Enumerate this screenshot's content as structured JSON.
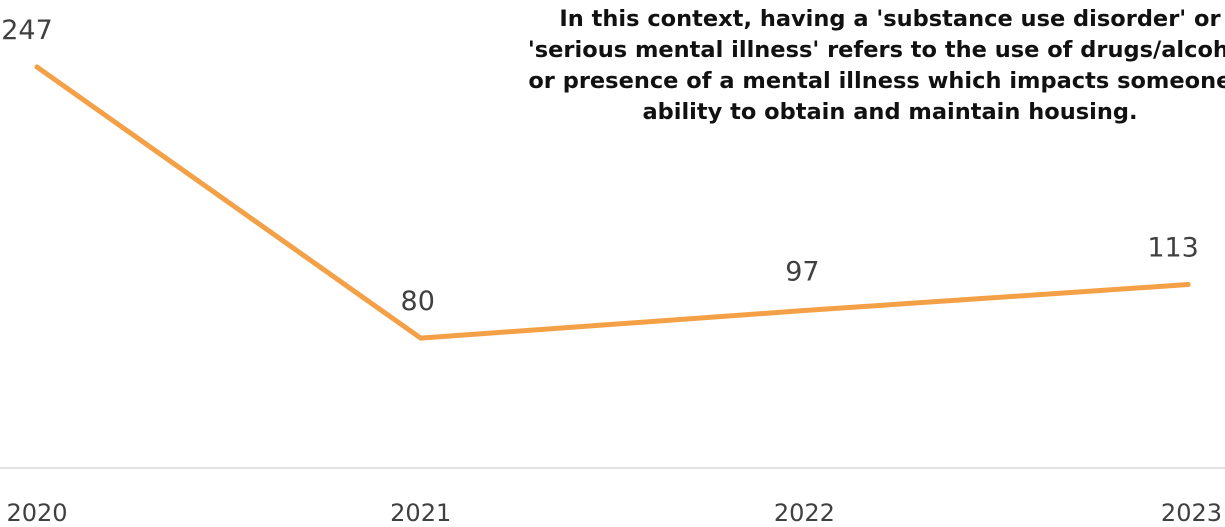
{
  "annotation": {
    "lines": [
      "In this context, having a 'substance use disorder' or",
      "'serious mental illness' refers to the use of drugs/alcohol",
      "or presence of a mental illness which impacts someone's",
      "ability to obtain and maintain housing."
    ]
  },
  "chart_data": {
    "type": "line",
    "title": "",
    "xlabel": "",
    "ylabel": "",
    "categories": [
      "2020",
      "2021",
      "2022",
      "2023"
    ],
    "series": [
      {
        "values": [
          247,
          80,
          97,
          113
        ],
        "color": "#F4A047"
      }
    ],
    "data_labels": [
      "247",
      "80",
      "97",
      "113"
    ],
    "ylim": [
      0,
      270
    ],
    "grid": false,
    "baseline_color": "#D9D9D9",
    "legend": "none"
  }
}
